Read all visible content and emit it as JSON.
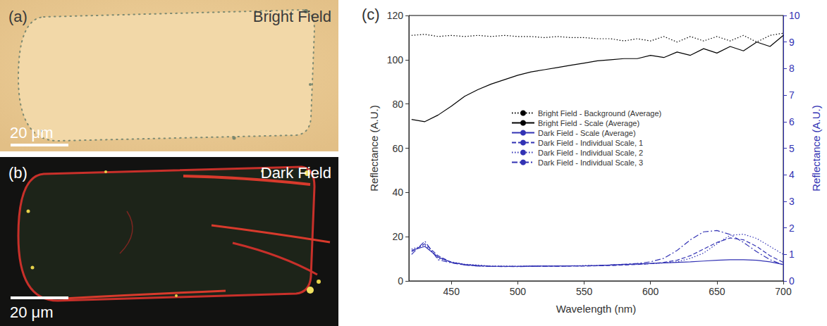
{
  "images": [
    {
      "letter": "(a)",
      "label": "Bright Field",
      "scale_bar": "20 μm"
    },
    {
      "letter": "(b)",
      "label": "Dark Field",
      "scale_bar": "20 μm"
    }
  ],
  "chart_data": {
    "type": "line",
    "title": "(c)",
    "x_label": "Wavelength (nm)",
    "y_label": "Reflectance (A.U.)",
    "y2_label": "Reflectance (A.U.)",
    "x": [
      420,
      430,
      440,
      450,
      460,
      470,
      480,
      490,
      500,
      510,
      520,
      530,
      540,
      550,
      560,
      570,
      580,
      590,
      600,
      610,
      620,
      630,
      640,
      650,
      660,
      670,
      680,
      690,
      700
    ],
    "xlim": [
      418,
      700
    ],
    "xticks": [
      450,
      500,
      550,
      600,
      650,
      700
    ],
    "ylim": [
      0,
      120
    ],
    "yticks": [
      0,
      20,
      40,
      60,
      80,
      100,
      120
    ],
    "y2lim": [
      0,
      10
    ],
    "y2ticks": [
      0,
      1,
      2,
      3,
      4,
      5,
      6,
      7,
      8,
      9,
      10
    ],
    "grid": false,
    "legend": "center",
    "series": [
      {
        "name": "Bright Field - Background (Average)",
        "color": "#000000",
        "line_style": "dotted",
        "values": [
          111,
          111.5,
          110.5,
          111,
          110.5,
          111,
          110.5,
          111,
          110.5,
          110.5,
          110,
          110.5,
          110,
          110,
          109.5,
          109.5,
          108.5,
          109.5,
          108.5,
          110.5,
          108,
          110.5,
          108.5,
          110.5,
          108.5,
          111,
          108,
          111,
          112
        ]
      },
      {
        "name": "Bright Field - Scale (Average)",
        "color": "#000000",
        "line_style": "solid",
        "values": [
          73,
          72,
          75,
          79,
          83.5,
          86.5,
          89,
          91,
          93,
          94.5,
          95.5,
          96.5,
          97.5,
          98.5,
          99.5,
          100,
          100.5,
          100.5,
          102,
          101,
          103.5,
          102,
          105,
          103,
          106,
          104,
          108,
          106,
          111
        ]
      },
      {
        "name": "Dark Field - Scale (Average)",
        "color": "#3232b4",
        "line_style": "solid",
        "axis": "y2",
        "values": [
          1.15,
          1.3,
          0.9,
          0.7,
          0.62,
          0.58,
          0.55,
          0.55,
          0.55,
          0.56,
          0.56,
          0.56,
          0.57,
          0.57,
          0.58,
          0.6,
          0.62,
          0.64,
          0.66,
          0.68,
          0.7,
          0.72,
          0.75,
          0.78,
          0.8,
          0.8,
          0.78,
          0.72,
          0.62
        ]
      },
      {
        "name": "Dark Field - Individual Scale, 1",
        "color": "#3232b4",
        "line_style": "dashed",
        "axis": "y2",
        "values": [
          1.1,
          1.4,
          0.95,
          0.7,
          0.6,
          0.57,
          0.55,
          0.54,
          0.55,
          0.55,
          0.56,
          0.55,
          0.56,
          0.56,
          0.57,
          0.58,
          0.6,
          0.62,
          0.65,
          0.7,
          0.78,
          0.95,
          1.2,
          1.45,
          1.62,
          1.55,
          1.3,
          0.95,
          0.7
        ]
      },
      {
        "name": "Dark Field - Individual Scale, 2",
        "color": "#3232b4",
        "line_style": "dotted",
        "axis": "y2",
        "values": [
          1.2,
          1.35,
          0.85,
          0.72,
          0.63,
          0.6,
          0.56,
          0.56,
          0.55,
          0.56,
          0.57,
          0.57,
          0.57,
          0.58,
          0.58,
          0.6,
          0.62,
          0.63,
          0.65,
          0.68,
          0.72,
          0.85,
          1.05,
          1.4,
          1.72,
          1.76,
          1.6,
          1.3,
          1.0
        ]
      },
      {
        "name": "Dark Field - Individual Scale, 3",
        "color": "#3232b4",
        "line_style": "dashdot",
        "axis": "y2",
        "values": [
          1.0,
          1.5,
          0.8,
          0.68,
          0.6,
          0.56,
          0.55,
          0.55,
          0.54,
          0.55,
          0.55,
          0.56,
          0.56,
          0.57,
          0.58,
          0.6,
          0.63,
          0.66,
          0.72,
          0.85,
          1.15,
          1.55,
          1.85,
          1.9,
          1.75,
          1.45,
          1.1,
          0.8,
          0.6
        ]
      }
    ]
  }
}
